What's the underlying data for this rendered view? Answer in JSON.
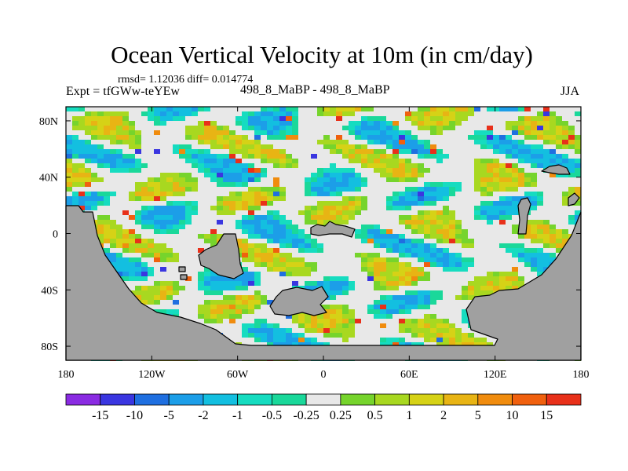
{
  "header": {
    "title": "Ocean Vertical Velocity at 10m (in cm/day)",
    "stats": "rmsd= 1.12036 diff= 0.014774",
    "expt": "Expt = tfGWw-teYEw",
    "cases": "498_8_MaBP - 498_8_MaBP",
    "season": "JJA"
  },
  "chart_data": {
    "type": "heatmap",
    "title": "Ocean Vertical Velocity at 10m (in cm/day)",
    "subtitle": "rmsd= 1.12036 diff= 0.014774",
    "xlabel": "",
    "ylabel": "",
    "x_ticks": [
      "180",
      "120W",
      "60W",
      "0",
      "60E",
      "120E",
      "180"
    ],
    "y_ticks": [
      "80N",
      "40N",
      "0",
      "40S",
      "80S"
    ],
    "xlim": [
      -180,
      180
    ],
    "ylim": [
      -90,
      90
    ],
    "colorbar": {
      "labels": [
        "-15",
        "-10",
        "-5",
        "-2",
        "-1",
        "-0.5",
        "-0.25",
        "0.25",
        "0.5",
        "1",
        "2",
        "5",
        "10",
        "15"
      ],
      "colors": [
        "#8a2be2",
        "#3a36e0",
        "#1f6fe0",
        "#1c9ee8",
        "#13bfe0",
        "#16dcc0",
        "#1ad89a",
        "#e8e8e8",
        "#76d42c",
        "#a8d820",
        "#d6d216",
        "#e8b414",
        "#f08c0e",
        "#f0600e",
        "#e8301a"
      ]
    },
    "land_color": "#a0a0a0"
  }
}
